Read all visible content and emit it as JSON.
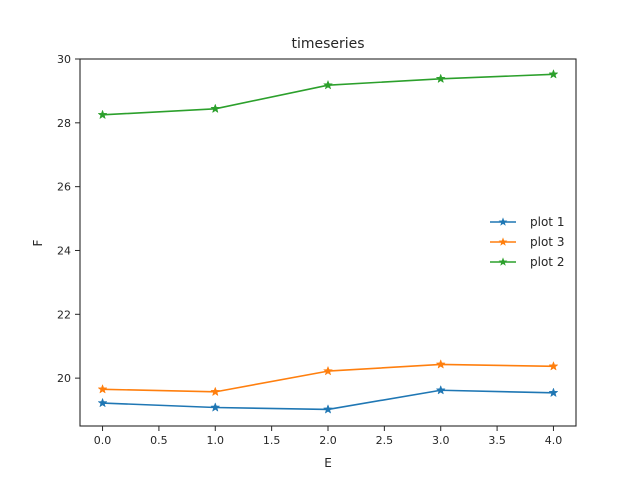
{
  "chart_data": {
    "type": "line",
    "title": "timeseries",
    "xlabel": "E",
    "ylabel": "F",
    "x": [
      0,
      1,
      2,
      3,
      4
    ],
    "xlim": [
      -0.2,
      4.2
    ],
    "ylim": [
      18.5,
      30
    ],
    "xticks": [
      "0.0",
      "0.5",
      "1.0",
      "1.5",
      "2.0",
      "2.5",
      "3.0",
      "3.5",
      "4.0"
    ],
    "yticks": [
      "20",
      "22",
      "24",
      "26",
      "28",
      "30"
    ],
    "grid": false,
    "legend_position": "center-right",
    "marker": "star",
    "series": [
      {
        "name": "plot 1",
        "color": "#1f77b4",
        "values": [
          19.22,
          19.08,
          19.02,
          19.62,
          19.54
        ]
      },
      {
        "name": "plot 3",
        "color": "#ff7f0e",
        "values": [
          19.65,
          19.57,
          20.22,
          20.43,
          20.37
        ]
      },
      {
        "name": "plot 2",
        "color": "#2ca02c",
        "values": [
          28.25,
          28.44,
          29.18,
          29.38,
          29.52
        ]
      }
    ]
  }
}
